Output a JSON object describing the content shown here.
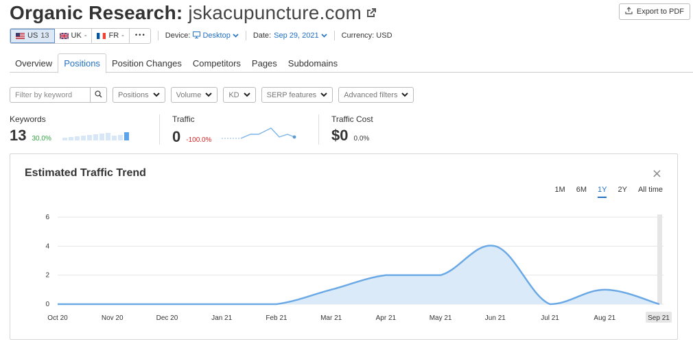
{
  "header": {
    "title_prefix": "Organic Research:",
    "domain": "jskacupuncture.com",
    "export_label": "Export to PDF"
  },
  "databases": [
    {
      "flag": "us-flag-icon",
      "code": "US",
      "count": "13",
      "active": true
    },
    {
      "flag": "uk-flag-icon",
      "code": "UK",
      "count": "-",
      "active": false
    },
    {
      "flag": "fr-flag-icon",
      "code": "FR",
      "count": "-",
      "active": false
    }
  ],
  "more_label": "•••",
  "device": {
    "label": "Device:",
    "value": "Desktop"
  },
  "date": {
    "label": "Date:",
    "value": "Sep 29, 2021"
  },
  "currency": {
    "label": "Currency: USD"
  },
  "tabs": [
    "Overview",
    "Positions",
    "Position Changes",
    "Competitors",
    "Pages",
    "Subdomains"
  ],
  "active_tab": "Positions",
  "filters": {
    "search_placeholder": "Filter by keyword",
    "dropdowns": [
      "Positions",
      "Volume",
      "KD",
      "SERP features",
      "Advanced filters"
    ]
  },
  "metrics": {
    "keywords": {
      "label": "Keywords",
      "value": "13",
      "delta": "30.0%",
      "delta_color": "#2e9e3e",
      "bars": [
        0.35,
        0.4,
        0.5,
        0.55,
        0.65,
        0.75,
        0.85,
        0.9,
        0.6,
        0.7,
        1.0
      ]
    },
    "traffic": {
      "label": "Traffic",
      "value": "0",
      "delta": "-100.0%",
      "delta_color": "#d92525"
    },
    "traffic_cost": {
      "label": "Traffic Cost",
      "value": "$0",
      "delta": "0.0%",
      "delta_color": "#333333"
    }
  },
  "panel": {
    "title": "Estimated Traffic Trend",
    "close_label": "×",
    "ranges": [
      "1M",
      "6M",
      "1Y",
      "2Y",
      "All time"
    ],
    "active_range": "1Y"
  },
  "chart_data": {
    "type": "area",
    "x": [
      "Oct 20",
      "Nov 20",
      "Dec 20",
      "Jan 21",
      "Feb 21",
      "Mar 21",
      "Apr 21",
      "May 21",
      "Jun 21",
      "Jul 21",
      "Aug 21",
      "Sep 21"
    ],
    "values": [
      0,
      0,
      0,
      0,
      0,
      1,
      2,
      2,
      4,
      0,
      1,
      0
    ],
    "yticks": [
      0,
      2,
      4,
      6
    ],
    "ylim": [
      0,
      6
    ],
    "grid": true,
    "line_color": "#6aa9e6",
    "fill_color": "#dbeaf8"
  }
}
